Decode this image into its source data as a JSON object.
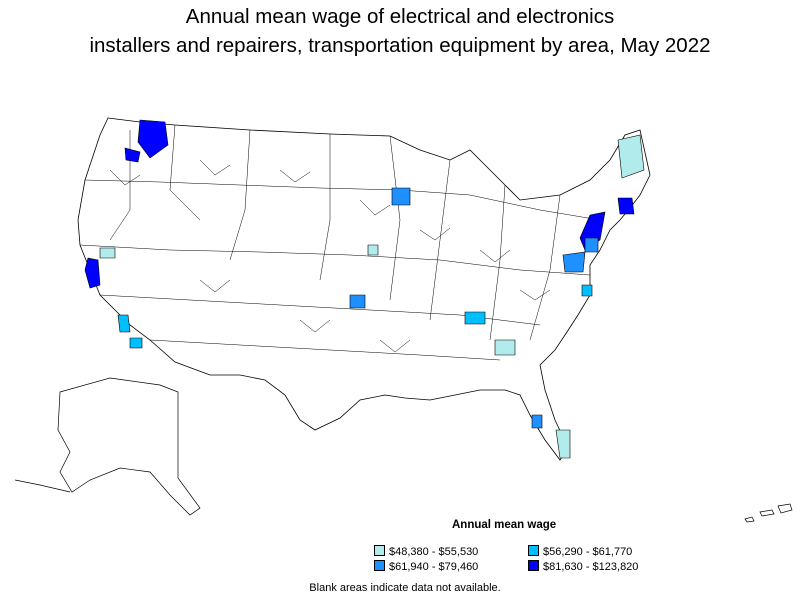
{
  "title_line1": "Annual mean wage of electrical and electronics",
  "title_line2": "installers and repairers, transportation equipment by area, May 2022",
  "legend": {
    "title": "Annual mean wage",
    "items": [
      {
        "label": "$48,380 - $55,530",
        "color": "#b2ebeb"
      },
      {
        "label": "$56,290 - $61,770",
        "color": "#00bfff"
      },
      {
        "label": "$61,940 - $79,460",
        "color": "#1e90ff"
      },
      {
        "label": "$81,630 - $123,820",
        "color": "#0000ff"
      }
    ]
  },
  "footnote": "Blank areas indicate data not available.",
  "colors": {
    "blank": "#ffffff",
    "border": "#000000"
  }
}
